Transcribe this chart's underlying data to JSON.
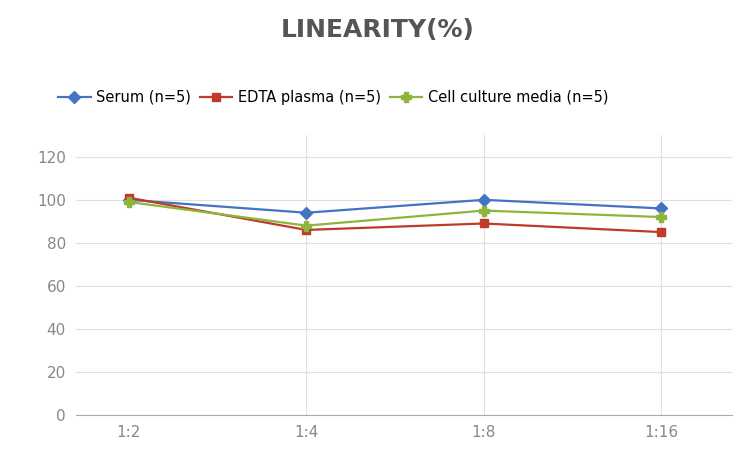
{
  "title": "LINEARITY(%)",
  "title_fontsize": 18,
  "title_fontweight": "bold",
  "title_color": "#555555",
  "x_labels": [
    "1:2",
    "1:4",
    "1:8",
    "1:16"
  ],
  "x_positions": [
    0,
    1,
    2,
    3
  ],
  "series": [
    {
      "label": "Serum (n=5)",
      "values": [
        100,
        94,
        100,
        96
      ],
      "color": "#4472C4",
      "marker": "D",
      "markersize": 6
    },
    {
      "label": "EDTA plasma (n=5)",
      "values": [
        101,
        86,
        89,
        85
      ],
      "color": "#BE3B2A",
      "marker": "s",
      "markersize": 6
    },
    {
      "label": "Cell culture media (n=5)",
      "values": [
        99,
        88,
        95,
        92
      ],
      "color": "#8DB53C",
      "marker": "P",
      "markersize": 7
    }
  ],
  "ylim": [
    0,
    130
  ],
  "yticks": [
    0,
    20,
    40,
    60,
    80,
    100,
    120
  ],
  "grid_color": "#E0E0E0",
  "background_color": "#FFFFFF",
  "legend_fontsize": 10.5,
  "tick_fontsize": 11,
  "tick_color": "#888888"
}
